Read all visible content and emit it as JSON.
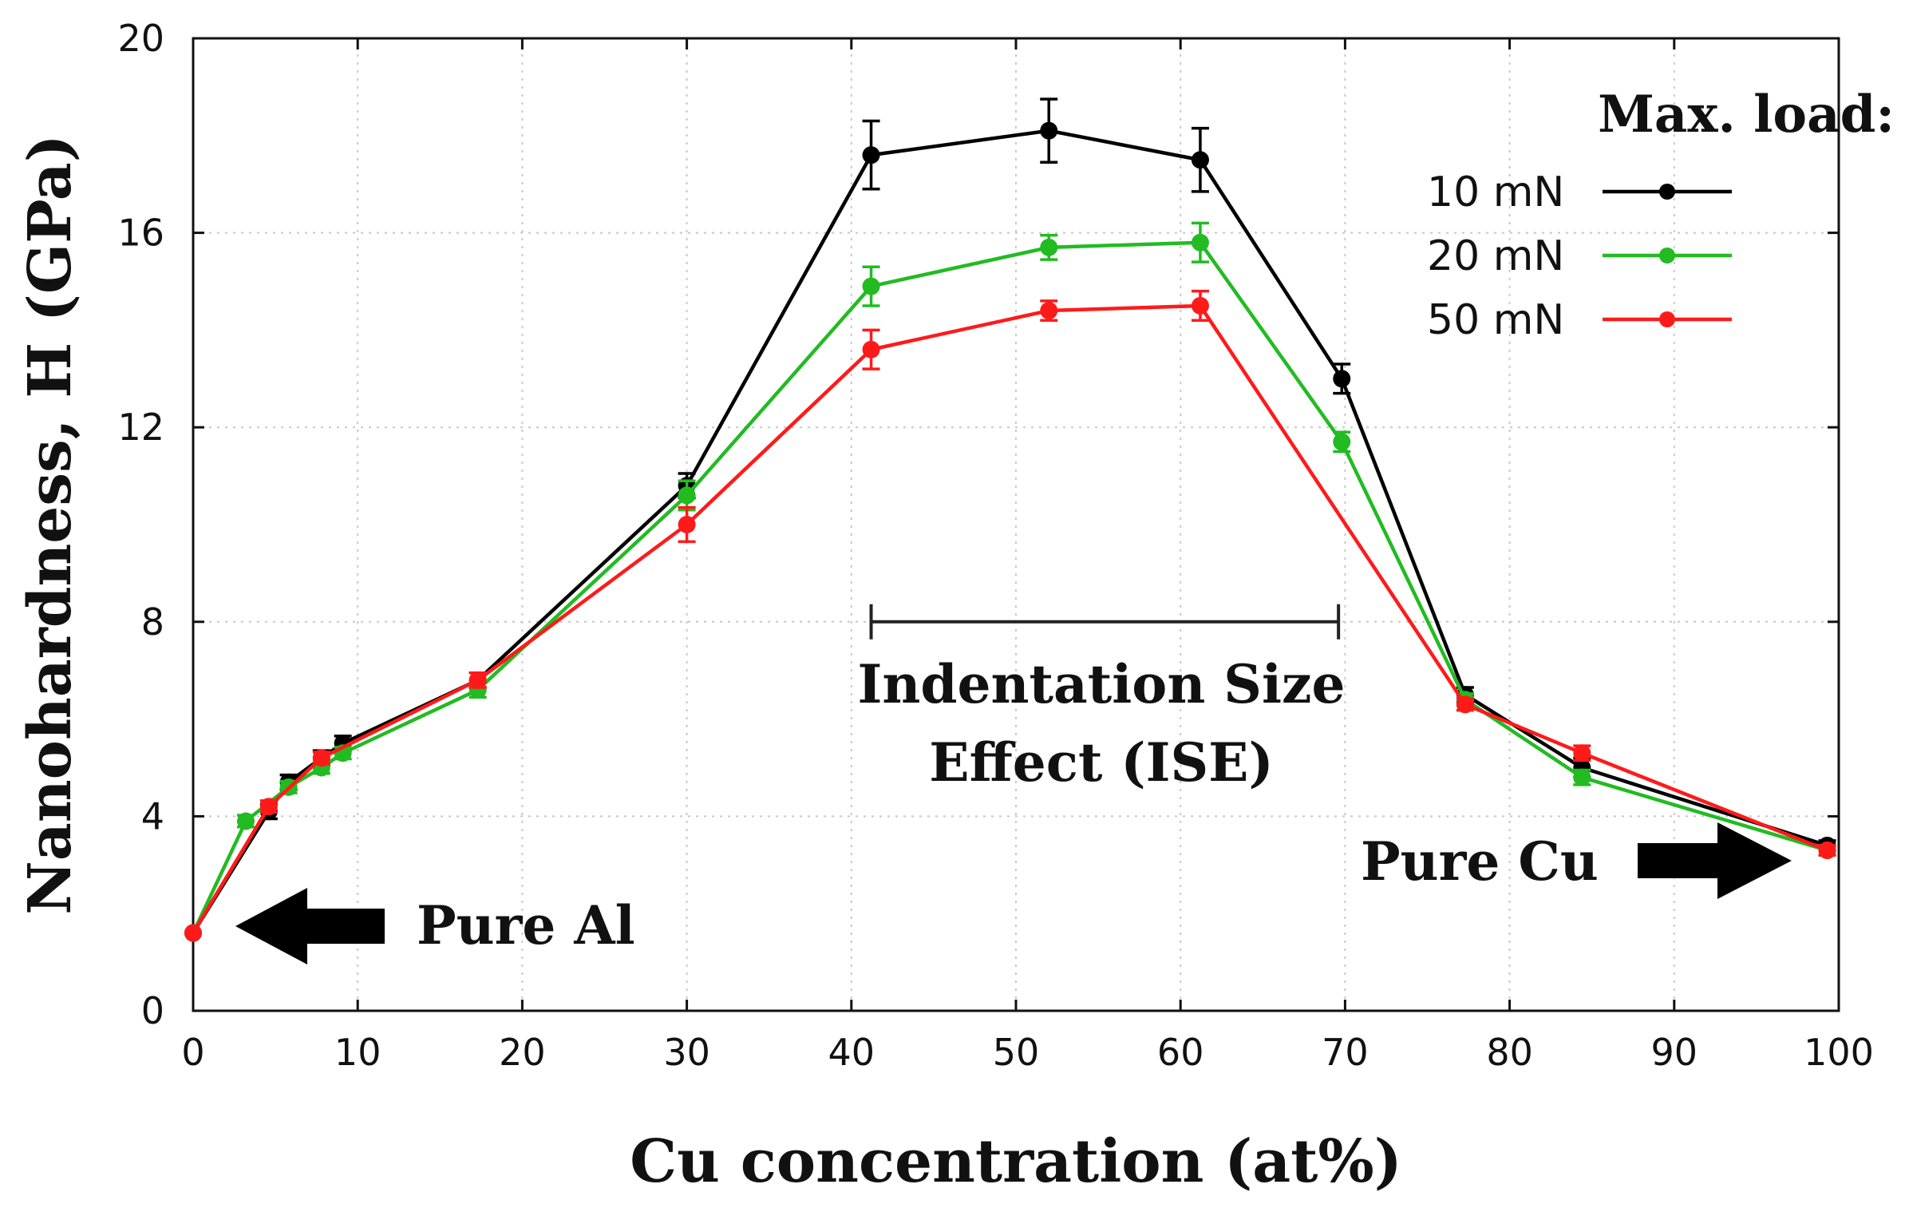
{
  "chart_data": {
    "type": "line",
    "title": "",
    "xlabel": "Cu concentration (at%)",
    "ylabel": "Nanohardness, H (GPa)",
    "xlim": [
      0,
      100
    ],
    "ylim": [
      0,
      20
    ],
    "xticks": [
      0,
      10,
      20,
      30,
      40,
      50,
      60,
      70,
      80,
      90,
      100
    ],
    "yticks": [
      0,
      4,
      8,
      12,
      16,
      20
    ],
    "grid": true,
    "legend": {
      "title": "Max. load:",
      "position": "top-right"
    },
    "series": [
      {
        "name": "10 mN",
        "color": "#000000",
        "x": [
          0,
          4.6,
          5.8,
          7.8,
          9.1,
          17.3,
          30.0,
          41.2,
          52.0,
          61.2,
          69.8,
          77.3,
          84.4,
          99.3
        ],
        "y": [
          1.6,
          4.1,
          4.7,
          5.2,
          5.5,
          6.8,
          10.8,
          17.6,
          18.1,
          17.5,
          13.0,
          6.5,
          5.0,
          3.4
        ],
        "err": [
          0,
          0.15,
          0.15,
          0.15,
          0.15,
          0.15,
          0.25,
          0.7,
          0.65,
          0.65,
          0.3,
          0.15,
          0.2,
          0.1
        ]
      },
      {
        "name": "20 mN",
        "color": "#22bb22",
        "x": [
          0,
          3.2,
          5.8,
          7.8,
          9.1,
          17.3,
          30.0,
          41.2,
          52.0,
          61.2,
          69.8,
          77.3,
          84.4,
          99.3
        ],
        "y": [
          1.6,
          3.9,
          4.6,
          5.0,
          5.3,
          6.6,
          10.6,
          14.9,
          15.7,
          15.8,
          11.7,
          6.4,
          4.8,
          3.3
        ],
        "err": [
          0,
          0.12,
          0.12,
          0.12,
          0.12,
          0.15,
          0.3,
          0.4,
          0.25,
          0.4,
          0.2,
          0.12,
          0.15,
          0.1
        ]
      },
      {
        "name": "50 mN",
        "color": "#ff1a1a",
        "x": [
          0,
          4.6,
          7.8,
          17.3,
          30.0,
          41.2,
          52.0,
          61.2,
          77.3,
          84.4,
          99.3
        ],
        "y": [
          1.6,
          4.2,
          5.2,
          6.8,
          10.0,
          13.6,
          14.4,
          14.5,
          6.3,
          5.3,
          3.3
        ],
        "err": [
          0,
          0.12,
          0.12,
          0.15,
          0.35,
          0.4,
          0.2,
          0.3,
          0.12,
          0.15,
          0.1
        ]
      }
    ],
    "annotations": {
      "ise_range": [
        41.2,
        69.6
      ],
      "ise_y": 8.0,
      "ise_line1": "Indentation Size",
      "ise_line2": "Effect (ISE)",
      "pure_al": "Pure Al",
      "pure_cu": "Pure Cu"
    }
  }
}
